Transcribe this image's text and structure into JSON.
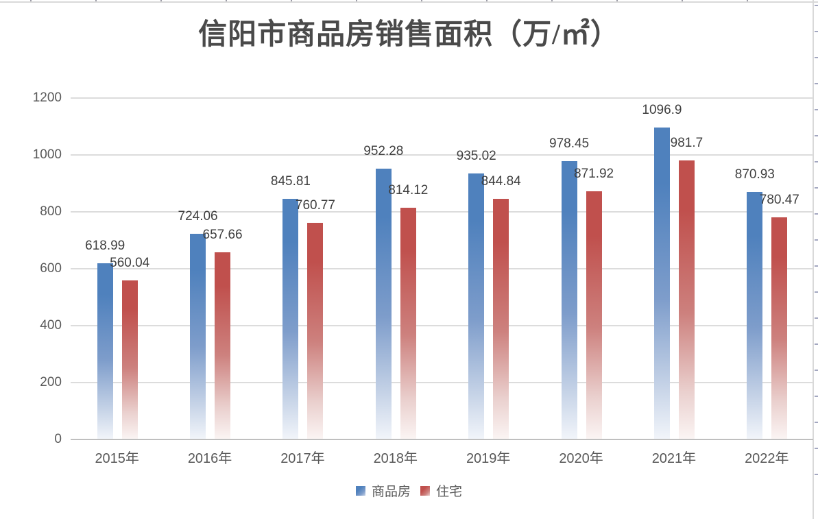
{
  "chart_data": {
    "type": "bar",
    "title": "信阳市商品房销售面积（万/㎡）",
    "categories": [
      "2015年",
      "2016年",
      "2017年",
      "2018年",
      "2019年",
      "2020年",
      "2021年",
      "2022年"
    ],
    "series": [
      {
        "name": "商品房",
        "color": "#4f81bd",
        "gradient": [
          "#4f81bd",
          "#7e9dcb",
          "#c6d3e7",
          "#f2f5fa"
        ],
        "values": [
          618.99,
          724.06,
          845.81,
          952.28,
          935.02,
          978.45,
          1096.9,
          870.93
        ]
      },
      {
        "name": "住宅",
        "color": "#c0504d",
        "gradient": [
          "#c0504d",
          "#cd817e",
          "#ead0ce",
          "#fbf5f4"
        ],
        "values": [
          560.04,
          657.66,
          760.77,
          814.12,
          844.84,
          871.92,
          981.7,
          780.47
        ]
      }
    ],
    "xlabel": "",
    "ylabel": "",
    "ylim": [
      0,
      1200
    ],
    "yticks": [
      0,
      200,
      400,
      600,
      800,
      1000,
      1200
    ],
    "grid": true,
    "legend_position": "bottom",
    "data_labels": true,
    "colors": {
      "title_text": "#4a4a4a",
      "axis_text": "#595959",
      "value_label_text": "#3f3f3f",
      "gridline": "#dcdcdc",
      "axis_line": "#bfbfbf",
      "background": "#ffffff"
    }
  }
}
